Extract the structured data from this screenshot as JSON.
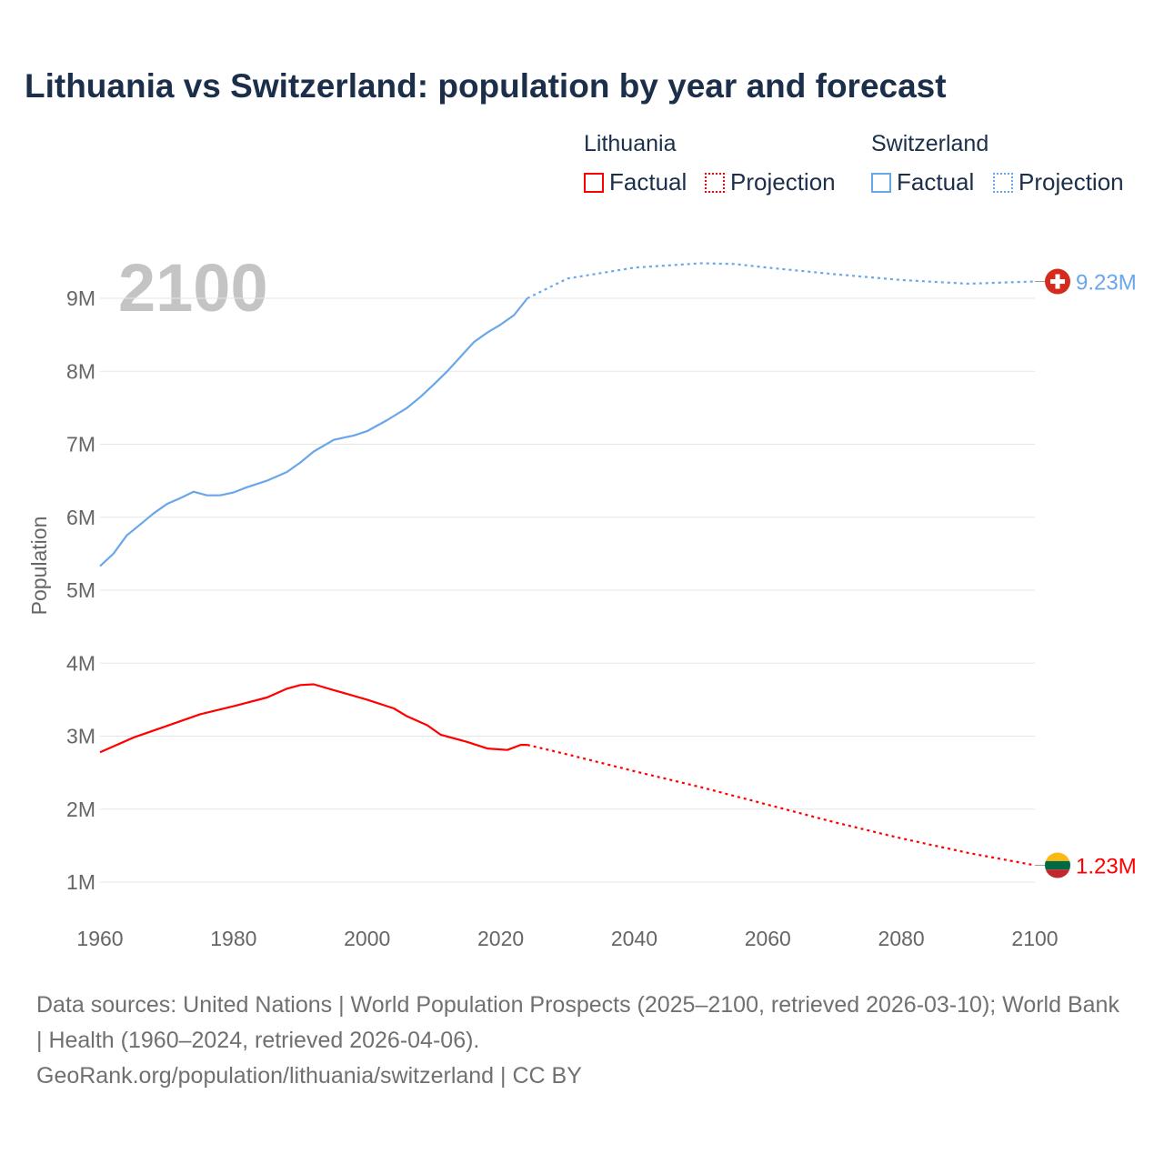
{
  "title": "Lithuania vs Switzerland: population by year and forecast",
  "legend": {
    "groups": [
      {
        "name": "Lithuania",
        "color": "#ff0000",
        "factual": "Factual",
        "projection": "Projection"
      },
      {
        "name": "Switzerland",
        "color": "#6aa6ea",
        "factual": "Factual",
        "projection": "Projection"
      }
    ]
  },
  "footer": {
    "sources": "Data sources: United Nations | World Population Prospects (2025–2100, retrieved 2026-03-10); World Bank | Health (1960–2024, retrieved 2026-04-06).",
    "link": "GeoRank.org/population/lithuania/switzerland | CC BY"
  },
  "chart_data": {
    "type": "line",
    "title": "Lithuania vs Switzerland: population by year and forecast",
    "year_watermark": "2100",
    "xlabel": "",
    "ylabel": "Population",
    "xlim": [
      1960,
      2100
    ],
    "ylim": [
      1,
      9
    ],
    "x_ticks": [
      "1960",
      "1980",
      "2000",
      "2020",
      "2040",
      "2060",
      "2080",
      "2100"
    ],
    "y_ticks": [
      "1M",
      "2M",
      "3M",
      "4M",
      "5M",
      "6M",
      "7M",
      "8M",
      "9M"
    ],
    "grid": true,
    "series": [
      {
        "name": "Switzerland",
        "color": "#6aa6ea",
        "end_label": "9.23M",
        "flag": "switzerland-flag",
        "factual": {
          "x": [
            1960,
            1962,
            1964,
            1966,
            1968,
            1970,
            1972,
            1974,
            1976,
            1978,
            1980,
            1982,
            1985,
            1988,
            1990,
            1992,
            1995,
            1998,
            2000,
            2003,
            2006,
            2008,
            2010,
            2012,
            2014,
            2016,
            2018,
            2020,
            2022,
            2024
          ],
          "y": [
            5.33,
            5.5,
            5.75,
            5.9,
            6.05,
            6.18,
            6.26,
            6.35,
            6.3,
            6.3,
            6.34,
            6.41,
            6.5,
            6.62,
            6.75,
            6.9,
            7.06,
            7.12,
            7.18,
            7.33,
            7.5,
            7.65,
            7.82,
            8.0,
            8.2,
            8.4,
            8.53,
            8.64,
            8.77,
            9.0
          ]
        },
        "projection": {
          "x": [
            2024,
            2030,
            2040,
            2050,
            2055,
            2060,
            2070,
            2080,
            2090,
            2100
          ],
          "y": [
            9.0,
            9.27,
            9.42,
            9.48,
            9.47,
            9.42,
            9.33,
            9.25,
            9.2,
            9.23
          ]
        }
      },
      {
        "name": "Lithuania",
        "color": "#ff0000",
        "end_label": "1.23M",
        "flag": "lithuania-flag",
        "factual": {
          "x": [
            1960,
            1965,
            1970,
            1975,
            1980,
            1985,
            1988,
            1990,
            1992,
            1995,
            2000,
            2004,
            2006,
            2009,
            2011,
            2015,
            2018,
            2021,
            2023,
            2024
          ],
          "y": [
            2.78,
            2.98,
            3.14,
            3.3,
            3.41,
            3.53,
            3.65,
            3.7,
            3.71,
            3.63,
            3.5,
            3.38,
            3.27,
            3.15,
            3.02,
            2.92,
            2.83,
            2.81,
            2.88,
            2.88
          ]
        },
        "projection": {
          "x": [
            2024,
            2030,
            2040,
            2050,
            2060,
            2070,
            2080,
            2090,
            2100
          ],
          "y": [
            2.88,
            2.75,
            2.52,
            2.3,
            2.06,
            1.82,
            1.6,
            1.4,
            1.23
          ]
        }
      }
    ]
  }
}
